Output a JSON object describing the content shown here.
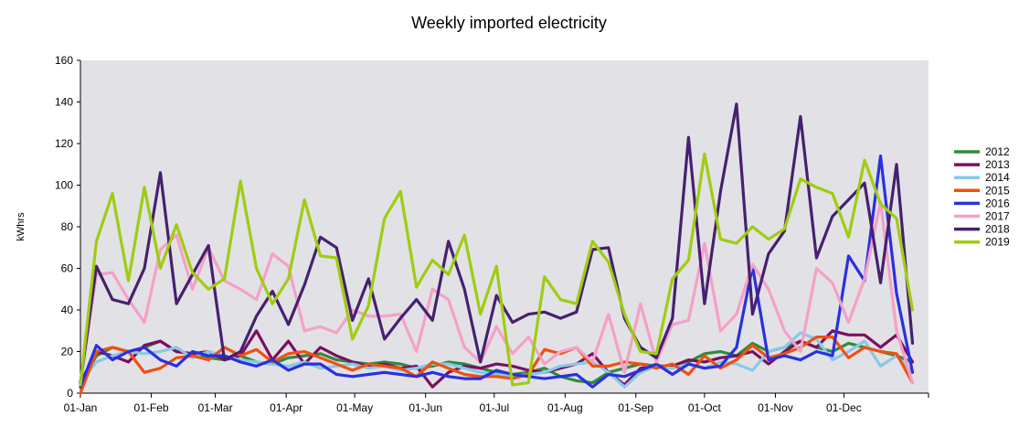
{
  "chart_data": {
    "type": "line",
    "title": "Weekly imported electricity",
    "xlabel": "",
    "ylabel": "kWhrs",
    "ylim": [
      0,
      160
    ],
    "yticks": [
      0,
      20,
      40,
      60,
      80,
      100,
      120,
      140,
      160
    ],
    "grid": false,
    "legend_position": "right",
    "plot_background": "#e2e2e6",
    "x_tick_labels": [
      "01-Jan",
      "01-Feb",
      "01-Mar",
      "01-Apr",
      "01-May",
      "01-Jun",
      "01-Jul",
      "01-Aug",
      "01-Sep",
      "01-Oct",
      "01-Nov",
      "01-Dec"
    ],
    "x_tick_weeks": [
      0,
      4.43,
      8.43,
      12.86,
      17.14,
      21.57,
      25.86,
      30.29,
      34.71,
      39,
      43.43,
      47.71
    ],
    "weeks_span": 53,
    "series": [
      {
        "name": "2012",
        "color": "#2e8b3e",
        "values": [
          5,
          18,
          22,
          20,
          22,
          25,
          20,
          19,
          17,
          16,
          18,
          15,
          14,
          17,
          18,
          19,
          16,
          15,
          14,
          15,
          14,
          12,
          13,
          15,
          14,
          12,
          10,
          9,
          10,
          12,
          8,
          6,
          5,
          10,
          12,
          14,
          13,
          12,
          15,
          19,
          20,
          18,
          24,
          20,
          22,
          25,
          22,
          20,
          24,
          22,
          20,
          18,
          15
        ]
      },
      {
        "name": "2013",
        "color": "#7a1060",
        "values": [
          5,
          20,
          18,
          15,
          23,
          25,
          20,
          19,
          20,
          16,
          18,
          30,
          16,
          25,
          14,
          22,
          18,
          15,
          13,
          14,
          12,
          13,
          3,
          10,
          13,
          12,
          14,
          13,
          11,
          10,
          12,
          14,
          19,
          10,
          4,
          12,
          13,
          13,
          16,
          15,
          17,
          18,
          20,
          14,
          20,
          25,
          22,
          30,
          28,
          28,
          22,
          28,
          15
        ]
      },
      {
        "name": "2014",
        "color": "#88c8e8",
        "values": [
          5,
          15,
          18,
          20,
          19,
          20,
          22,
          17,
          20,
          18,
          16,
          15,
          14,
          13,
          15,
          12,
          13,
          14,
          12,
          13,
          11,
          12,
          14,
          14,
          12,
          10,
          9,
          8,
          9,
          10,
          13,
          14,
          15,
          10,
          3,
          10,
          13,
          12,
          14,
          12,
          15,
          14,
          11,
          20,
          22,
          29,
          26,
          16,
          20,
          25,
          13,
          18,
          10
        ]
      },
      {
        "name": "2015",
        "color": "#f05010",
        "values": [
          0,
          20,
          22,
          20,
          10,
          12,
          17,
          18,
          16,
          22,
          18,
          21,
          15,
          19,
          20,
          17,
          14,
          11,
          14,
          13,
          12,
          8,
          15,
          12,
          9,
          8,
          8,
          7,
          9,
          21,
          19,
          22,
          13,
          13,
          15,
          14,
          12,
          14,
          9,
          18,
          12,
          16,
          23,
          17,
          19,
          22,
          27,
          27,
          17,
          22,
          20,
          19,
          5
        ]
      },
      {
        "name": "2016",
        "color": "#2a30e0",
        "values": [
          3,
          23,
          16,
          20,
          22,
          16,
          13,
          20,
          18,
          18,
          15,
          13,
          16,
          11,
          14,
          14,
          9,
          8,
          9,
          10,
          9,
          8,
          10,
          8,
          7,
          7,
          11,
          9,
          8,
          7,
          8,
          9,
          3,
          9,
          8,
          11,
          14,
          9,
          14,
          12,
          13,
          22,
          61,
          16,
          18,
          16,
          20,
          18,
          66,
          54,
          114,
          48,
          10
        ]
      },
      {
        "name": "2017",
        "color": "#f5a0c8",
        "values": [
          5,
          57,
          58,
          45,
          34,
          69,
          76,
          50,
          70,
          54,
          50,
          45,
          67,
          61,
          30,
          32,
          29,
          40,
          37,
          37,
          38,
          20,
          50,
          45,
          22,
          15,
          32,
          19,
          27,
          14,
          20,
          22,
          15,
          38,
          10,
          43,
          15,
          33,
          35,
          72,
          30,
          38,
          62,
          50,
          30,
          20,
          60,
          53,
          34,
          55,
          92,
          30,
          5
        ]
      },
      {
        "name": "2018",
        "color": "#472070",
        "values": [
          5,
          61,
          45,
          43,
          60,
          106,
          43,
          57,
          71,
          16,
          20,
          37,
          49,
          33,
          52,
          75,
          70,
          35,
          55,
          26,
          36,
          45,
          35,
          73,
          50,
          15,
          47,
          34,
          38,
          39,
          36,
          39,
          69,
          70,
          36,
          22,
          17,
          36,
          123,
          43,
          97,
          139,
          38,
          67,
          78,
          133,
          65,
          85,
          93,
          101,
          53,
          110,
          24
        ]
      },
      {
        "name": "2019",
        "color": "#a0cc10",
        "values": [
          4,
          73,
          96,
          54,
          99,
          60,
          81,
          58,
          50,
          55,
          102,
          60,
          43,
          55,
          93,
          66,
          65,
          26,
          42,
          84,
          97,
          51,
          64,
          57,
          76,
          38,
          61,
          4,
          5,
          56,
          45,
          43,
          73,
          63,
          38,
          20,
          19,
          55,
          64,
          115,
          74,
          72,
          80,
          74,
          79,
          103,
          99,
          96,
          75,
          112,
          91,
          84,
          40
        ]
      }
    ]
  }
}
